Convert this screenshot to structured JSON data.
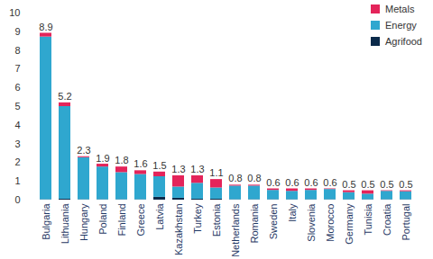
{
  "chart_data": {
    "type": "bar",
    "stacked": true,
    "grid": false,
    "legend": "top-right",
    "categories": [
      "Bulgaria",
      "Lithuania",
      "Hungary",
      "Poland",
      "Finland",
      "Greece",
      "Latvia",
      "Kazakhstan",
      "Turkey",
      "Estonia",
      "Netherlands",
      "Romania",
      "Sweden",
      "Italy",
      "Slovenia",
      "Morocco",
      "Germany",
      "Tunisia",
      "Croatia",
      "Portugal"
    ],
    "series": [
      {
        "name": "Agrifood",
        "color": "#0b2a4a",
        "values": [
          0.02,
          0.05,
          0.02,
          0.02,
          0.02,
          0.02,
          0.15,
          0.1,
          0.05,
          0.05,
          0.02,
          0.02,
          0.02,
          0.02,
          0.02,
          0.02,
          0.02,
          0.02,
          0.02,
          0.02
        ]
      },
      {
        "name": "Energy",
        "color": "#2fa7cf",
        "values": [
          8.7,
          4.95,
          2.25,
          1.75,
          1.45,
          1.35,
          1.1,
          0.6,
          0.85,
          0.6,
          0.73,
          0.73,
          0.5,
          0.45,
          0.5,
          0.55,
          0.38,
          0.3,
          0.45,
          0.43
        ]
      },
      {
        "name": "Metals",
        "color": "#e4245a",
        "values": [
          0.2,
          0.2,
          0.05,
          0.15,
          0.3,
          0.2,
          0.25,
          0.6,
          0.4,
          0.45,
          0.05,
          0.05,
          0.08,
          0.13,
          0.08,
          0.03,
          0.1,
          0.18,
          0.03,
          0.05
        ]
      }
    ],
    "totals": [
      8.9,
      5.2,
      2.3,
      1.9,
      1.8,
      1.6,
      1.5,
      1.3,
      1.3,
      1.1,
      0.8,
      0.8,
      0.6,
      0.6,
      0.6,
      0.6,
      0.5,
      0.5,
      0.5,
      0.5
    ],
    "ylim": [
      0,
      10
    ],
    "yticks": [
      0,
      1,
      2,
      3,
      4,
      5,
      6,
      7,
      8,
      9,
      10
    ]
  }
}
